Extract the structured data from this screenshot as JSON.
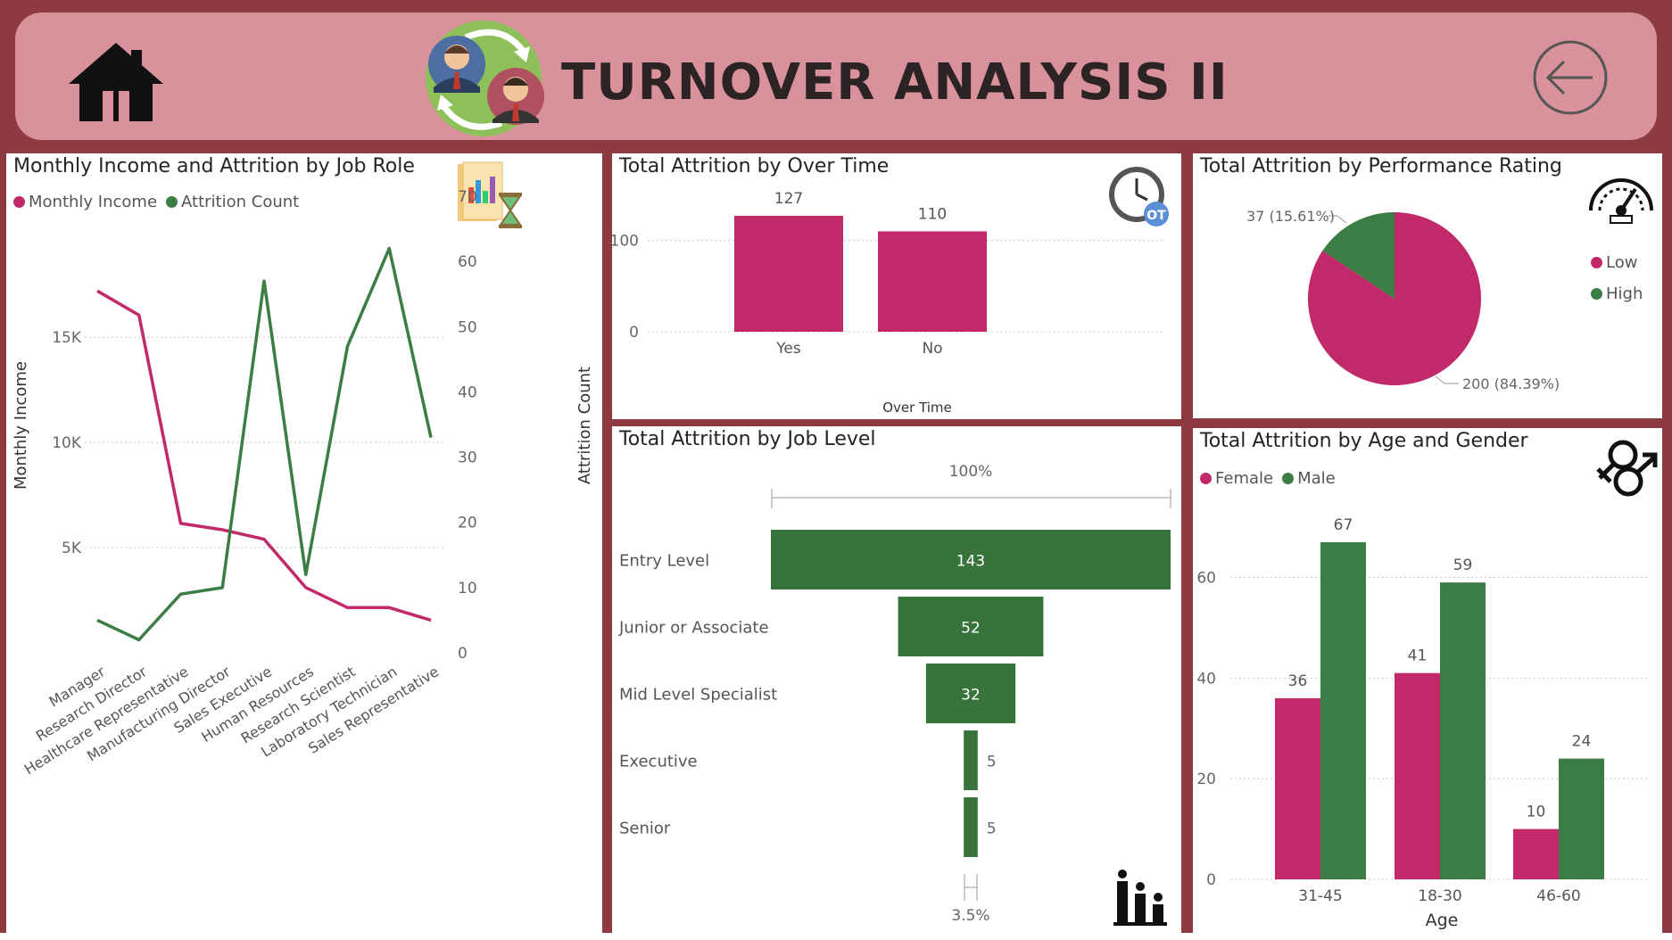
{
  "header": {
    "title": "TURNOVER ANALYSIS II",
    "home_icon": "home-icon",
    "back_icon": "arrow-left-circle-icon"
  },
  "colors": {
    "background": "#8e3a41",
    "header": "#d9929b",
    "pink": "#c2296b",
    "green": "#3c7d45",
    "dark_green": "#38733c"
  },
  "panels": {
    "income": {
      "title": "Monthly Income and Attrition by Job Role",
      "legend": [
        "Monthly Income",
        "Attrition Count"
      ],
      "icon": "report-hourglass-icon"
    },
    "overtime": {
      "title": "Total Attrition by Over Time",
      "icon": "clock-ot-icon"
    },
    "performance": {
      "title": "Total Attrition by Performance Rating",
      "legend": [
        "Low",
        "High"
      ],
      "icon": "speedometer-icon"
    },
    "joblevel": {
      "title": "Total Attrition by Job Level",
      "icon": "people-ladder-icon"
    },
    "agegender": {
      "title": "Total Attrition by Age and Gender",
      "legend": [
        "Female",
        "Male"
      ],
      "icon": "gender-icon"
    }
  },
  "chart_data": [
    {
      "type": "line",
      "title": "Monthly Income and Attrition by Job Role",
      "categories": [
        "Manager",
        "Research Director",
        "Healthcare Representative",
        "Manufacturing Director",
        "Sales Executive",
        "Human Resources",
        "Research Scientist",
        "Laboratory Technician",
        "Sales Representative"
      ],
      "series": [
        {
          "name": "Monthly Income",
          "axis": "left",
          "values": [
            17200,
            16050,
            6150,
            5850,
            5400,
            3100,
            2150,
            2150,
            1550
          ]
        },
        {
          "name": "Attrition Count",
          "axis": "right",
          "values": [
            5,
            2,
            9,
            10,
            57,
            12,
            47,
            62,
            33
          ]
        }
      ],
      "ylabel": "Monthly Income",
      "y2label": "Attrition Count",
      "yticks": [
        "5K",
        "10K",
        "15K"
      ],
      "ylim": [
        0,
        21700
      ],
      "y2ticks": [
        0,
        10,
        20,
        30,
        40,
        50,
        60,
        70
      ],
      "y2lim": [
        0,
        70
      ],
      "grid": true,
      "legend_position": "top-left"
    },
    {
      "type": "bar",
      "title": "Total Attrition by Over Time",
      "categories": [
        "Yes",
        "No"
      ],
      "values": [
        127,
        110
      ],
      "xlabel": "Over Time",
      "yticks": [
        0,
        100
      ],
      "ylim": [
        0,
        127
      ]
    },
    {
      "type": "pie",
      "title": "Total Attrition by Performance Rating",
      "labels": [
        "Low",
        "High"
      ],
      "values": [
        200,
        37
      ],
      "data_labels": [
        "200 (84.39%)",
        "37 (15.61%)"
      ],
      "legend_position": "right"
    },
    {
      "type": "bar",
      "subtype": "funnel",
      "title": "Total Attrition by Job Level",
      "categories": [
        "Entry Level",
        "Junior or Associate",
        "Mid Level Specialist",
        "Executive",
        "Senior"
      ],
      "values": [
        143,
        52,
        32,
        5,
        5
      ],
      "top_label": "100%",
      "bottom_label": "3.5%"
    },
    {
      "type": "bar",
      "title": "Total Attrition by Age and Gender",
      "categories": [
        "31-45",
        "18-30",
        "46-60"
      ],
      "series": [
        {
          "name": "Female",
          "values": [
            36,
            41,
            10
          ]
        },
        {
          "name": "Male",
          "values": [
            67,
            59,
            24
          ]
        }
      ],
      "xlabel": "Age",
      "yticks": [
        0,
        20,
        40,
        60
      ],
      "ylim": [
        0,
        67
      ],
      "legend_position": "top-left"
    }
  ]
}
